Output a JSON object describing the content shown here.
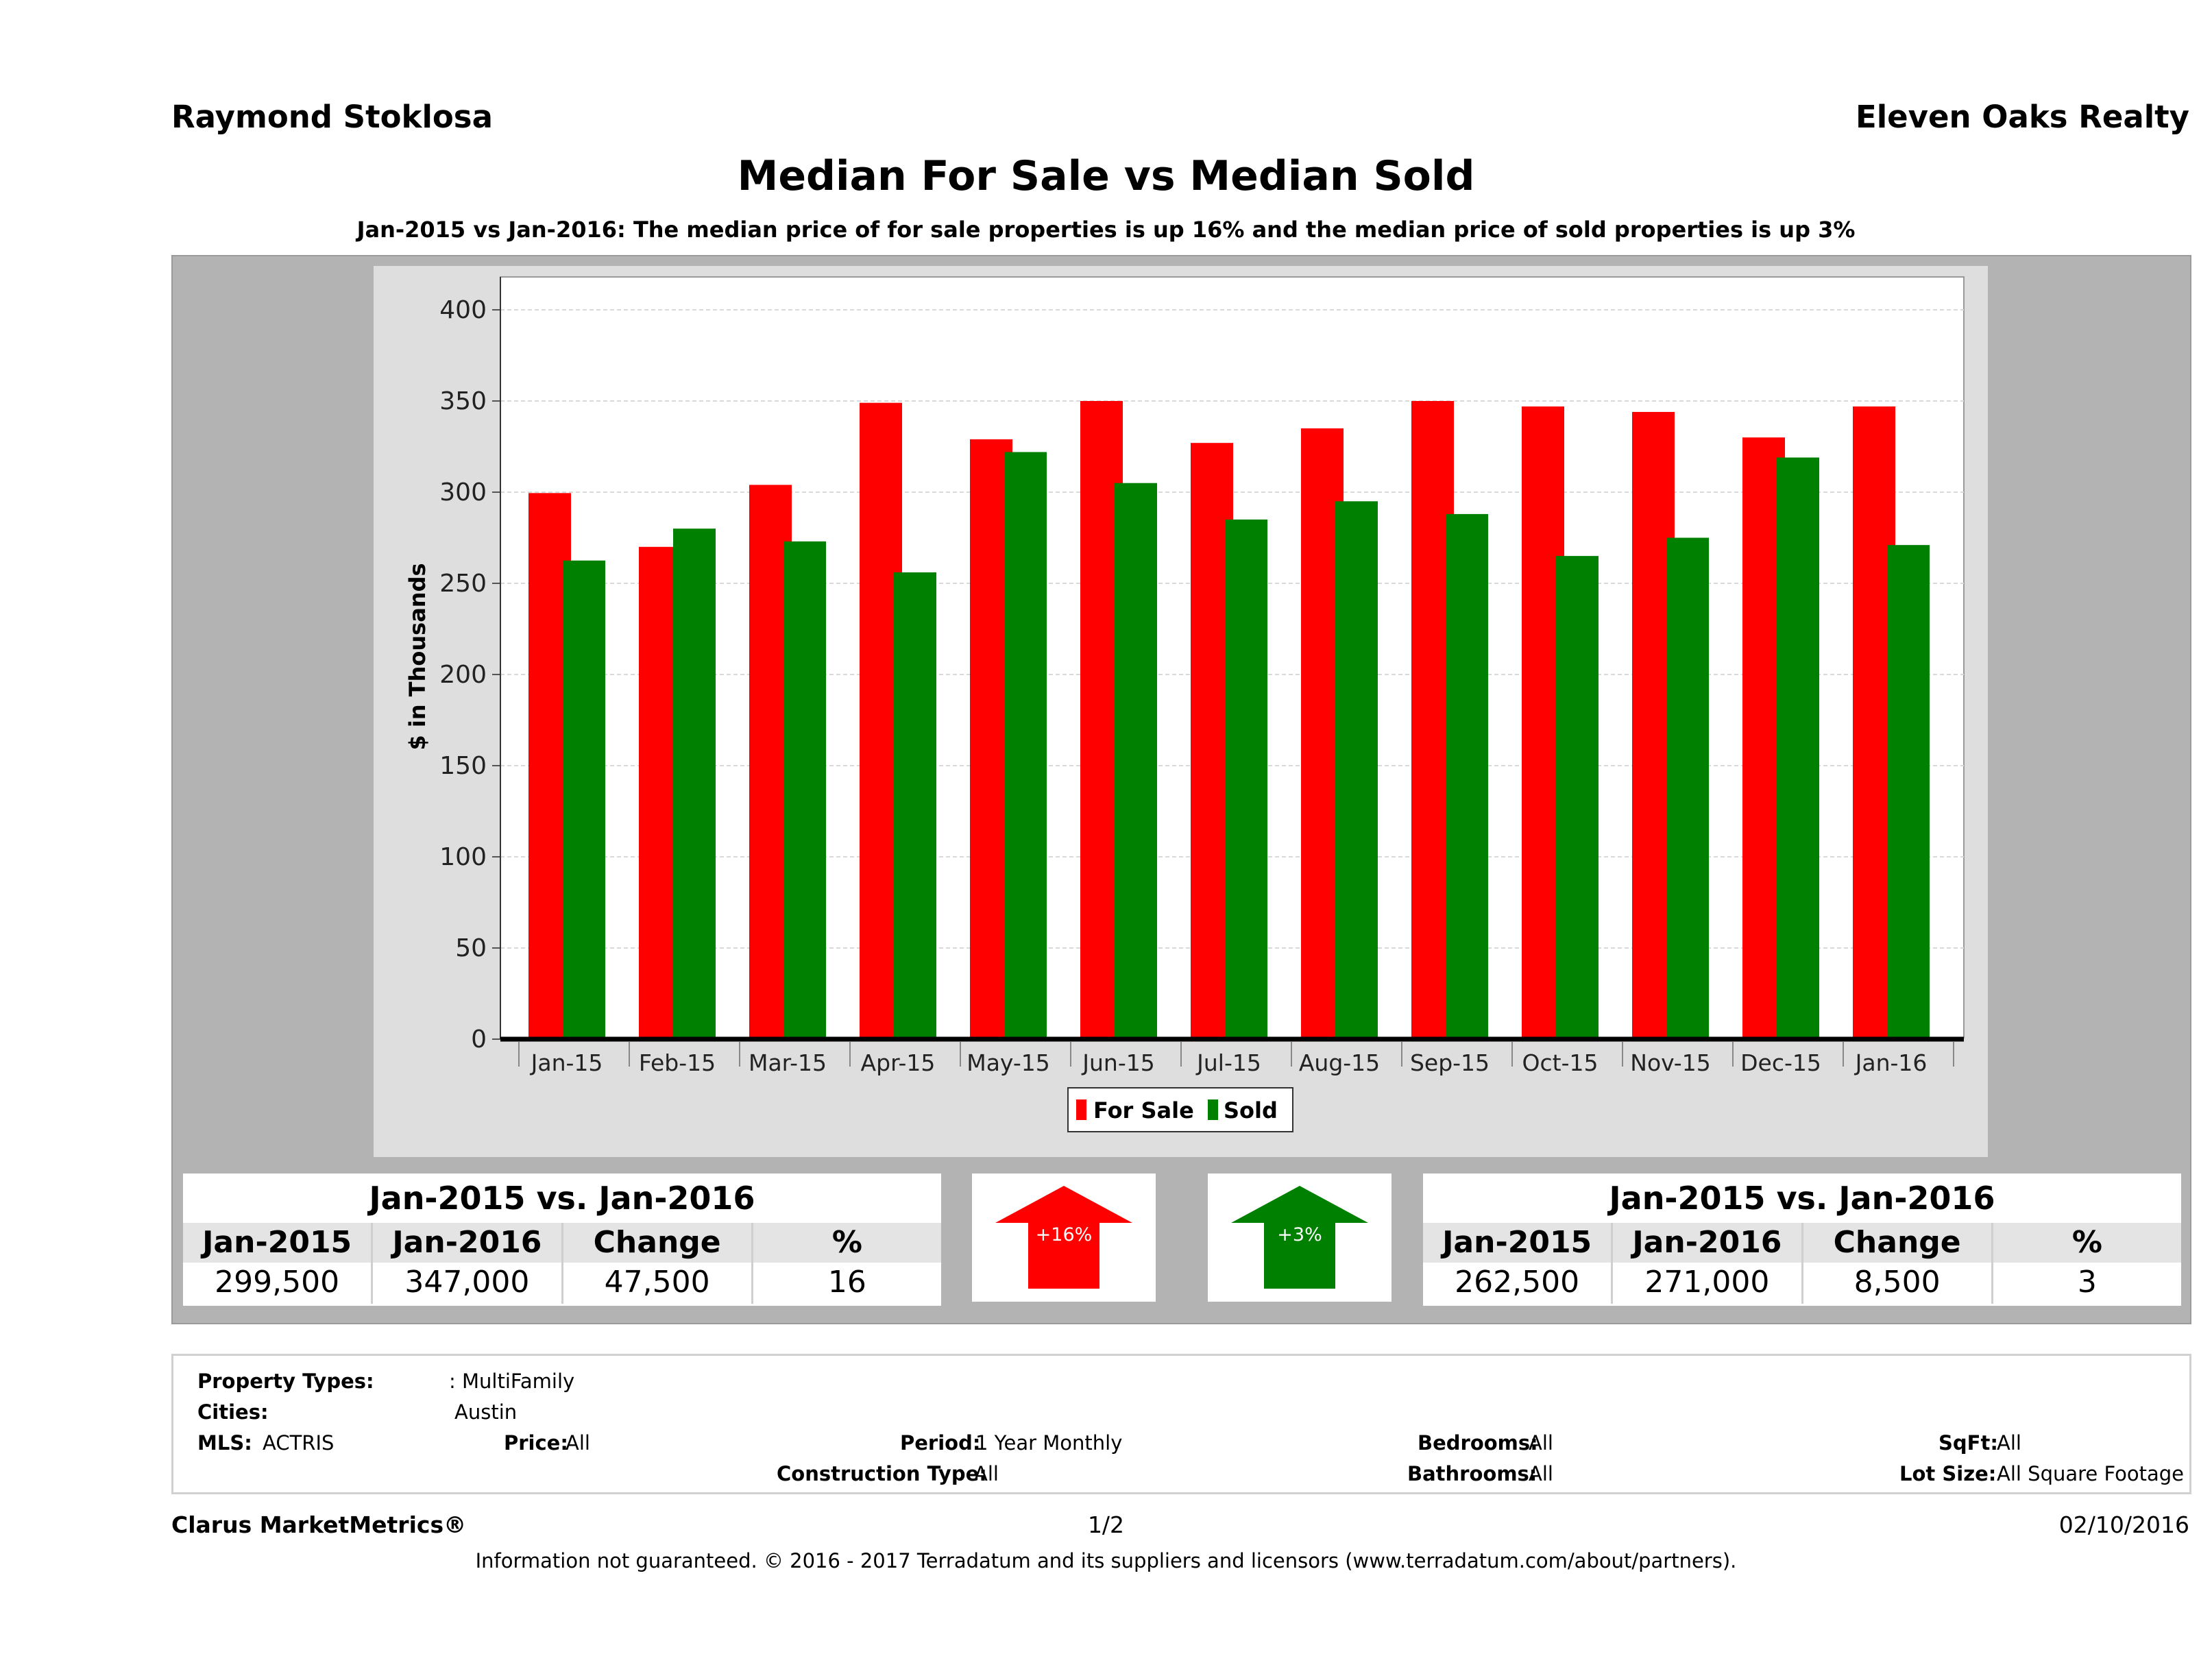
{
  "header": {
    "agent_name": "Raymond Stoklosa",
    "company": "Eleven Oaks Realty",
    "title": "Median For Sale vs Median Sold",
    "subtitle": "Jan-2015 vs Jan-2016: The median price of for sale properties is up 16% and the median price of sold properties is up 3%"
  },
  "chart_data": {
    "type": "bar",
    "categories": [
      "Jan-15",
      "Feb-15",
      "Mar-15",
      "Apr-15",
      "May-15",
      "Jun-15",
      "Jul-15",
      "Aug-15",
      "Sep-15",
      "Oct-15",
      "Nov-15",
      "Dec-15",
      "Jan-16"
    ],
    "series": [
      {
        "name": "For Sale",
        "color": "#ff0000",
        "values": [
          299.5,
          270,
          304,
          349,
          329,
          350,
          327,
          335,
          350,
          347,
          344,
          330,
          347
        ]
      },
      {
        "name": "Sold",
        "color": "#008000",
        "values": [
          262.5,
          280,
          273,
          256,
          322,
          305,
          285,
          295,
          288,
          265,
          275,
          319,
          271
        ]
      }
    ],
    "ylabel": "$ in Thousands",
    "ylim": [
      0,
      400
    ],
    "yticks": [
      "0",
      "50",
      "100",
      "150",
      "200",
      "250",
      "300",
      "350",
      "400"
    ],
    "legend_position": "bottom-center",
    "grid": true
  },
  "summary_for_sale": {
    "title": "Jan-2015 vs. Jan-2016",
    "headers": [
      "Jan-2015",
      "Jan-2016",
      "Change",
      "%"
    ],
    "values": [
      "299,500",
      "347,000",
      "47,500",
      "16"
    ],
    "arrow_label": "+16%",
    "arrow_color": "#ff0000"
  },
  "summary_sold": {
    "title": "Jan-2015 vs. Jan-2016",
    "headers": [
      "Jan-2015",
      "Jan-2016",
      "Change",
      "%"
    ],
    "values": [
      "262,500",
      "271,000",
      "8,500",
      "3"
    ],
    "arrow_label": "+3%",
    "arrow_color": "#008000"
  },
  "filters": {
    "property_types_label": "Property Types:",
    "property_types_value": ": MultiFamily",
    "cities_label": "Cities:",
    "cities_value": "Austin",
    "mls_label": "MLS:",
    "mls_value": "ACTRIS",
    "price_label": "Price:",
    "price_value": "All",
    "period_label": "Period:",
    "period_value": "1 Year Monthly",
    "construction_label": "Construction Type:",
    "construction_value": "All",
    "bedrooms_label": "Bedrooms:",
    "bedrooms_value": "All",
    "bathrooms_label": "Bathrooms:",
    "bathrooms_value": "All",
    "sqft_label": "SqFt:",
    "sqft_value": "All",
    "lot_label": "Lot Size:",
    "lot_value": "All Square Footage"
  },
  "footer": {
    "brand": "Clarus MarketMetrics®",
    "page": "1/2",
    "date": "02/10/2016",
    "disclaimer": "Information not guaranteed. © 2016 - 2017 Terradatum and its suppliers and licensors (www.terradatum.com/about/partners)."
  }
}
